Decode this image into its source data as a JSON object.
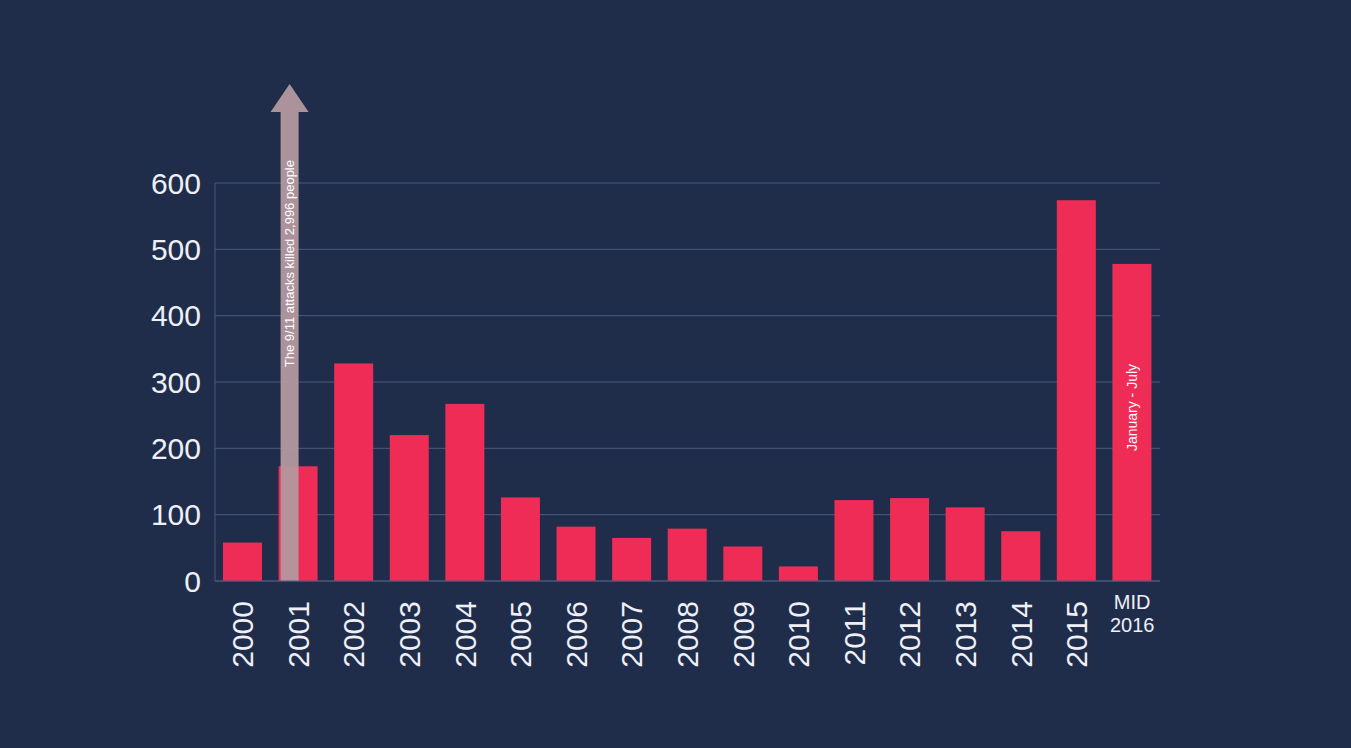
{
  "chart_data": {
    "type": "bar",
    "categories": [
      "2000",
      "2001",
      "2002",
      "2003",
      "2004",
      "2005",
      "2006",
      "2007",
      "2008",
      "2009",
      "2010",
      "2011",
      "2012",
      "2013",
      "2014",
      "2015",
      "MID 2016"
    ],
    "values": [
      58,
      173,
      328,
      220,
      267,
      126,
      82,
      65,
      79,
      52,
      22,
      122,
      125,
      111,
      75,
      574,
      478
    ],
    "color": "#ee2c56",
    "ylim": [
      0,
      600
    ],
    "yticks": [
      0,
      100,
      200,
      300,
      400,
      500,
      600
    ],
    "grid": true,
    "annotations": [
      {
        "text": "The 9/11 attacks killed 2,996 people",
        "category": "2001",
        "marker": "arrow"
      },
      {
        "text": "January - July",
        "category": "MID 2016"
      }
    ]
  }
}
